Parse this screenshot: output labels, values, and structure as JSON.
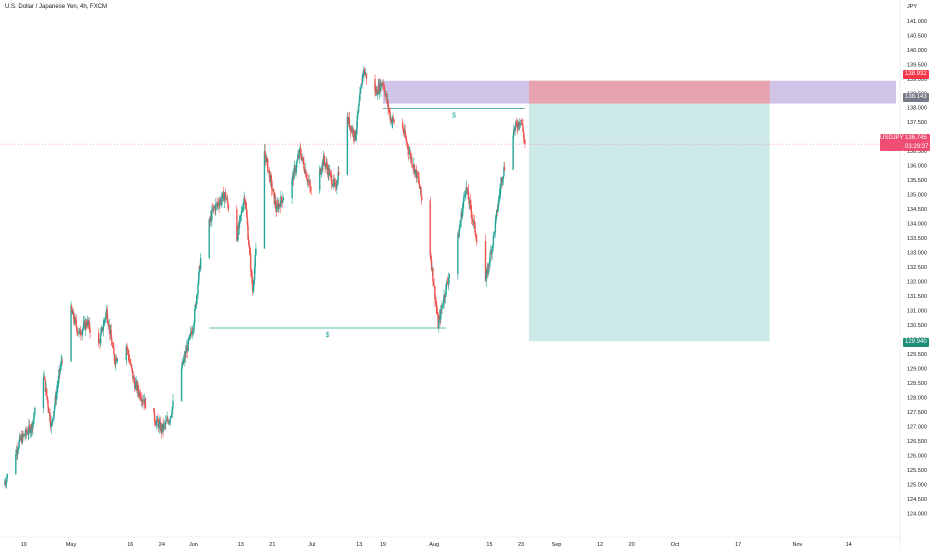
{
  "header": {
    "title": "U.S. Dollar / Japanese Yen, 4h, FXCM"
  },
  "symbol": "USDJPY",
  "currency": "JPY",
  "price_tags": {
    "stop": "138.932",
    "entry": "138.143",
    "current": "136.745",
    "countdown": "03:29:37",
    "target": "129.940"
  },
  "markers": {
    "upper_liquidity": "$",
    "lower_liquidity": "$"
  },
  "colors": {
    "up": "#26a69a",
    "down": "#ef5350",
    "stop_zone": "#b39ddb",
    "risk_zone": "#ef9a9a",
    "reward_zone": "#b2dfdb",
    "current_price": "#ef4d71",
    "target_tag": "#1e8e7a",
    "entry_tag": "#787b86",
    "stop_tag": "#f23645"
  },
  "chart_data": {
    "type": "candlestick",
    "timeframe": "4h",
    "ylim": [
      123.5,
      141.2
    ],
    "y_ticks": [
      "124.000",
      "124.500",
      "125.000",
      "125.500",
      "126.000",
      "126.500",
      "127.000",
      "127.500",
      "128.000",
      "128.500",
      "129.000",
      "129.500",
      "130.000",
      "130.500",
      "131.000",
      "131.500",
      "132.000",
      "132.500",
      "133.000",
      "133.500",
      "134.000",
      "134.500",
      "135.000",
      "135.500",
      "136.000",
      "136.500",
      "137.000",
      "137.500",
      "138.000",
      "138.500",
      "139.000",
      "139.500",
      "140.000",
      "140.500",
      "141.000"
    ],
    "x_ticks": [
      "19",
      "May",
      "16",
      "24",
      "Jun",
      "13",
      "21",
      "Jul",
      "13",
      "19",
      "Aug",
      "15",
      "23",
      "Sep",
      "12",
      "20",
      "Oct",
      "17",
      "Nov",
      "14"
    ],
    "price_path": [
      [
        "2023-04-14",
        125.0
      ],
      [
        "2023-04-18",
        126.5
      ],
      [
        "2023-04-21",
        127.0
      ],
      [
        "2023-04-24",
        128.8
      ],
      [
        "2023-04-26",
        127.0
      ],
      [
        "2023-04-28",
        128.8
      ],
      [
        "2023-05-01",
        131.0
      ],
      [
        "2023-05-03",
        130.2
      ],
      [
        "2023-05-05",
        130.6
      ],
      [
        "2023-05-08",
        129.8
      ],
      [
        "2023-05-10",
        131.0
      ],
      [
        "2023-05-12",
        129.3
      ],
      [
        "2023-05-15",
        129.8
      ],
      [
        "2023-05-17",
        128.5
      ],
      [
        "2023-05-19",
        128.0
      ],
      [
        "2023-05-22",
        127.3
      ],
      [
        "2023-05-24",
        126.9
      ],
      [
        "2023-05-26",
        127.3
      ],
      [
        "2023-05-29",
        129.0
      ],
      [
        "2023-06-01",
        130.5
      ],
      [
        "2023-06-03",
        133.0
      ],
      [
        "2023-06-06",
        134.5
      ],
      [
        "2023-06-09",
        135.0
      ],
      [
        "2023-06-12",
        133.5
      ],
      [
        "2023-06-14",
        135.0
      ],
      [
        "2023-06-16",
        131.7
      ],
      [
        "2023-06-19",
        136.5
      ],
      [
        "2023-06-22",
        134.5
      ],
      [
        "2023-06-26",
        135.5
      ],
      [
        "2023-06-28",
        136.5
      ],
      [
        "2023-07-01",
        135.0
      ],
      [
        "2023-07-04",
        136.2
      ],
      [
        "2023-07-07",
        135.2
      ],
      [
        "2023-07-10",
        137.6
      ],
      [
        "2023-07-12",
        137.0
      ],
      [
        "2023-07-14",
        139.3
      ],
      [
        "2023-07-17",
        138.5
      ],
      [
        "2023-07-19",
        138.9
      ],
      [
        "2023-07-21",
        137.6
      ],
      [
        "2023-07-24",
        137.3
      ],
      [
        "2023-07-26",
        136.3
      ],
      [
        "2023-07-28",
        135.5
      ],
      [
        "2023-07-31",
        133.0
      ],
      [
        "2023-08-02",
        130.5
      ],
      [
        "2023-08-04",
        131.8
      ],
      [
        "2023-08-07",
        133.5
      ],
      [
        "2023-08-09",
        135.3
      ],
      [
        "2023-08-11",
        134.0
      ],
      [
        "2023-08-14",
        132.0
      ],
      [
        "2023-08-16",
        133.5
      ],
      [
        "2023-08-18",
        135.5
      ],
      [
        "2023-08-21",
        137.2
      ],
      [
        "2023-08-23",
        137.6
      ],
      [
        "2023-08-24",
        136.745
      ]
    ],
    "levels": [
      {
        "name": "Upper liquidity",
        "from": "2023-07-19",
        "to": "2023-08-24",
        "price": 137.97
      },
      {
        "name": "Lower liquidity",
        "from": "2023-06-05",
        "to": "2023-08-04",
        "price": 130.4
      }
    ],
    "short_position": {
      "start": "2023-08-25",
      "end": "2023-10-25",
      "stop": 138.932,
      "entry": 138.143,
      "target": 129.94
    },
    "stop_band": {
      "start": "2023-07-19",
      "end": "2023-11-26",
      "from": 138.143,
      "to": 138.932
    },
    "current_price": 136.745,
    "grid": false
  }
}
